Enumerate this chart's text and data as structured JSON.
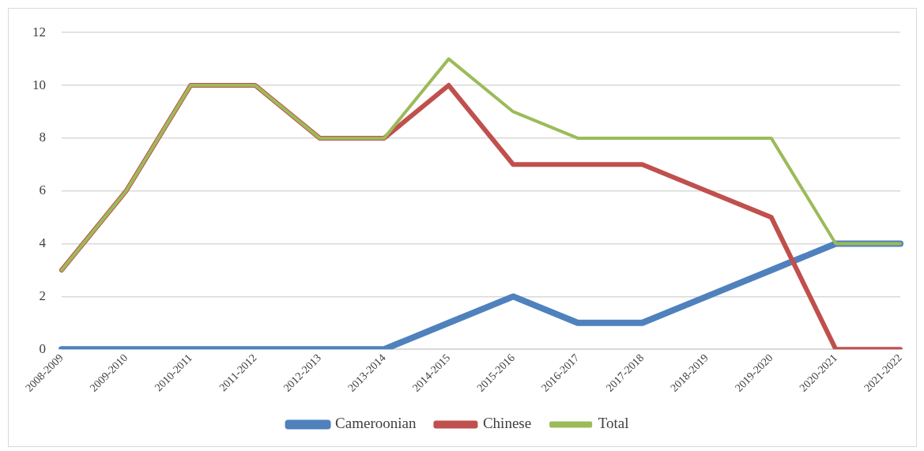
{
  "chart_data": {
    "type": "line",
    "categories": [
      "2008-2009",
      "2009-2010",
      "2010-2011",
      "2011-2012",
      "2012-2013",
      "2013-2014",
      "2014-2015",
      "2015-2016",
      "2016-2017",
      "2017-2018",
      "2018-2019",
      "2019-2020",
      "2020-2021",
      "2021-2022"
    ],
    "series": [
      {
        "name": "Cameroonian",
        "color": "#4f81bd",
        "values": [
          0,
          0,
          0,
          0,
          0,
          0,
          1,
          2,
          1,
          1,
          2,
          3,
          4,
          4
        ]
      },
      {
        "name": "Chinese",
        "color": "#c0504d",
        "values": [
          3,
          6,
          10,
          10,
          8,
          8,
          10,
          7,
          7,
          7,
          6,
          5,
          0,
          0
        ]
      },
      {
        "name": "Total",
        "color": "#9bbb59",
        "values": [
          3,
          6,
          10,
          10,
          8,
          8,
          11,
          9,
          8,
          8,
          8,
          8,
          4,
          4
        ]
      }
    ],
    "ylim": [
      0,
      12
    ],
    "yticks": [
      0,
      2,
      4,
      6,
      8,
      10,
      12
    ],
    "grid": "y",
    "legend": "bottom",
    "marker": "none",
    "line_style": "solid"
  }
}
